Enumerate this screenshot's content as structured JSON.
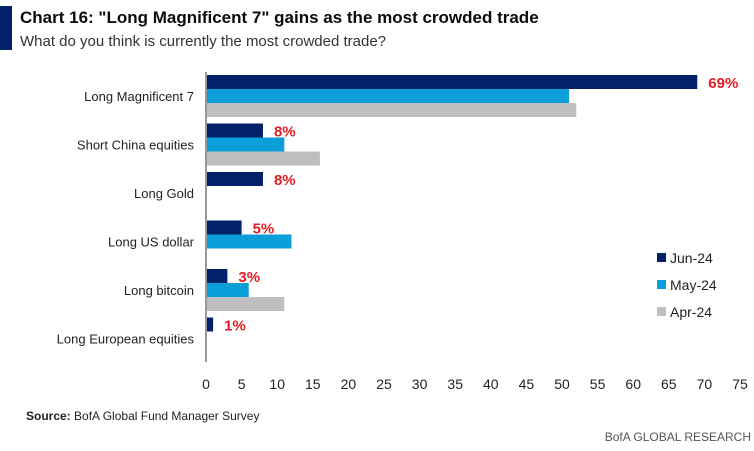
{
  "header": {
    "title": "Chart 16: \"Long Magnificent 7\" gains as the most crowded trade",
    "subtitle": "What do you think is currently the most crowded trade?"
  },
  "chart_data": {
    "type": "bar",
    "orientation": "horizontal",
    "categories": [
      "Long Magnificent 7",
      "Short China equities",
      "Long Gold",
      "Long US dollar",
      "Long bitcoin",
      "Long European equities"
    ],
    "series": [
      {
        "name": "Jun-24",
        "color": "#012169",
        "values": [
          69,
          8,
          8,
          5,
          3,
          1
        ]
      },
      {
        "name": "May-24",
        "color": "#0b9ed9",
        "values": [
          51,
          11,
          0,
          12,
          6,
          0
        ]
      },
      {
        "name": "Apr-24",
        "color": "#bfbfbf",
        "values": [
          52,
          16,
          0,
          0,
          11,
          0
        ]
      }
    ],
    "data_labels": [
      "69%",
      "8%",
      "8%",
      "5%",
      "3%",
      "1%"
    ],
    "data_label_series": "Jun-24",
    "data_label_color": "#e31b23",
    "xlim": [
      0,
      75
    ],
    "xticks": [
      "0",
      "5",
      "10",
      "15",
      "20",
      "25",
      "30",
      "35",
      "40",
      "45",
      "50",
      "55",
      "60",
      "65",
      "70",
      "75"
    ],
    "grid": false,
    "legend_position": "right"
  },
  "footer": {
    "source_label": "Source:",
    "source_text": "BofA Global Fund Manager Survey",
    "brand": "BofA GLOBAL RESEARCH"
  }
}
